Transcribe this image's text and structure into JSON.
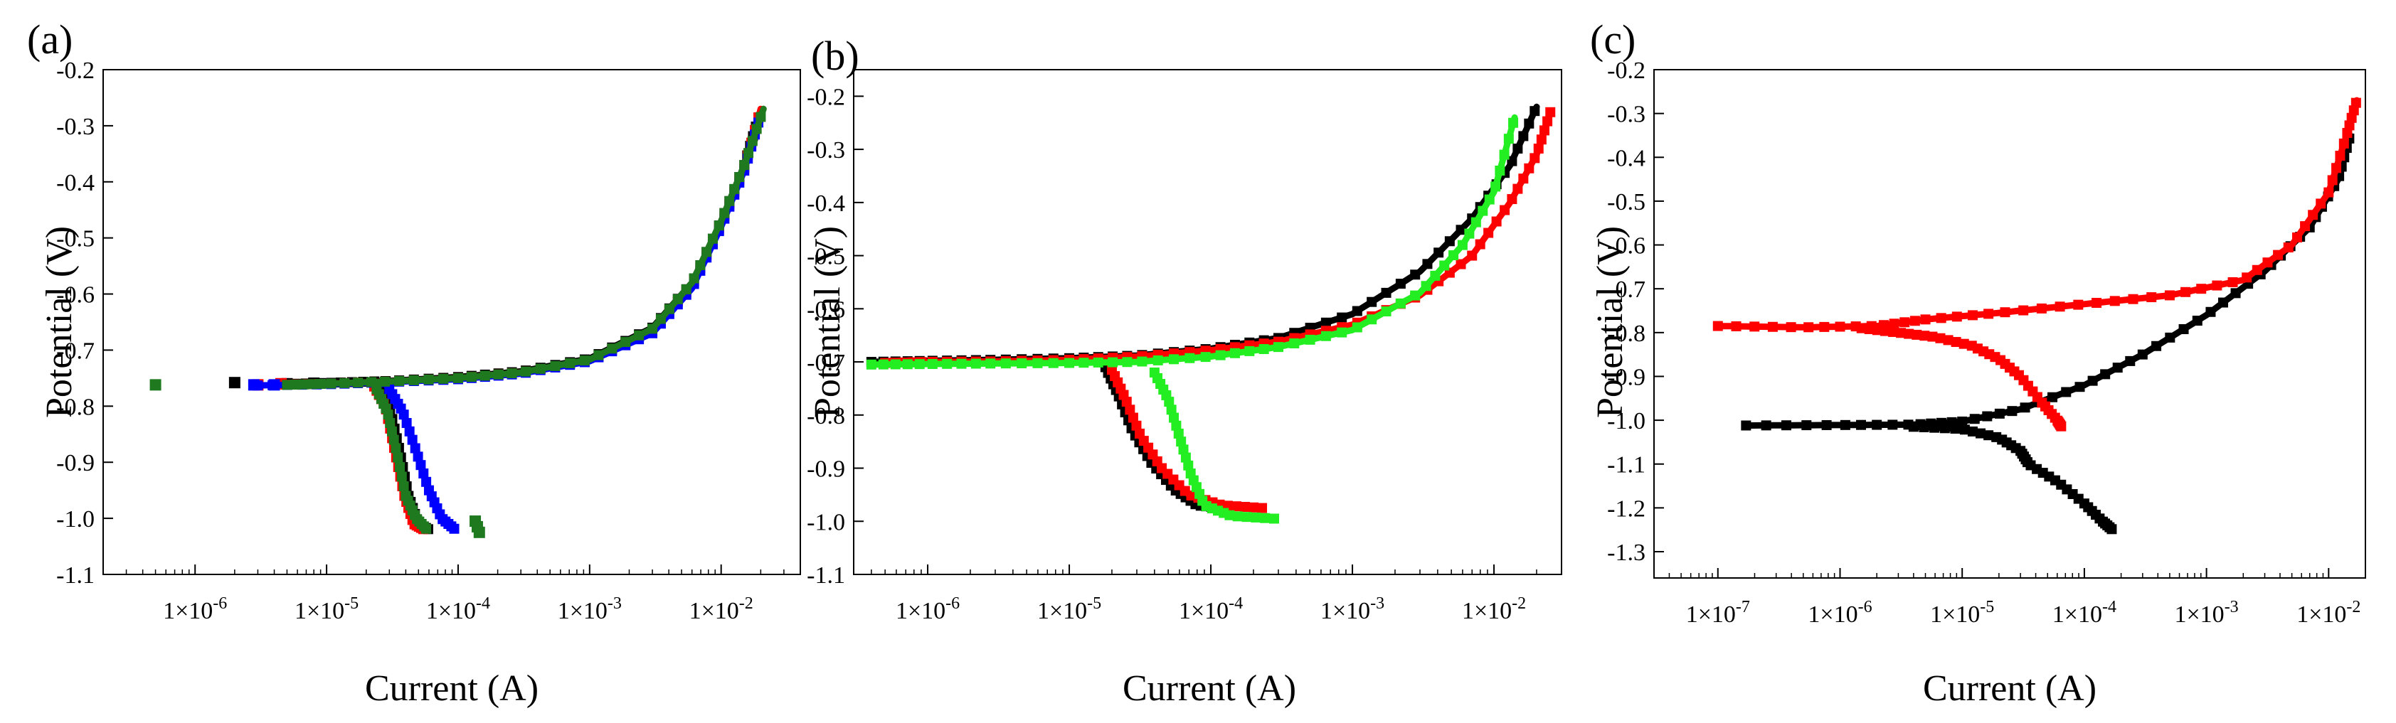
{
  "figure": {
    "description_free": true
  },
  "chart_data": [
    {
      "panel": "(a)",
      "type": "scatter",
      "xscale": "log",
      "xlabel": "Current (A)",
      "ylabel": "Potential (V)",
      "xlim": [
        2e-07,
        0.04
      ],
      "ylim": [
        -1.1,
        -0.2
      ],
      "y_ticks": [
        "-0.2",
        "-0.3",
        "-0.4",
        "-0.5",
        "-0.6",
        "-0.7",
        "-0.8",
        "-0.9",
        "-1.0",
        "-1.1"
      ],
      "x_ticks": [
        "1×10-6",
        "1×10-5",
        "1×10-4",
        "1×10-3",
        "1×10-2"
      ],
      "x_tick_values": [
        1e-06,
        1e-05,
        0.0001,
        0.001,
        0.01
      ],
      "series": [
        {
          "name": "black",
          "color": "#000000",
          "ecorr": -0.76,
          "icorr": 2.5e-05,
          "anodic": [
            [
              6e-06,
              -0.76
            ],
            [
              1.2e-05,
              -0.758
            ],
            [
              3e-05,
              -0.755
            ],
            [
              0.0001,
              -0.748
            ],
            [
              0.0003,
              -0.738
            ],
            [
              0.001,
              -0.715
            ],
            [
              0.003,
              -0.66
            ],
            [
              0.006,
              -0.58
            ],
            [
              0.01,
              -0.47
            ],
            [
              0.015,
              -0.37
            ],
            [
              0.019,
              -0.29
            ]
          ],
          "cathodic": [
            [
              2.5e-05,
              -0.765
            ],
            [
              3e-05,
              -0.8
            ],
            [
              3.6e-05,
              -0.88
            ],
            [
              4.2e-05,
              -0.96
            ],
            [
              5e-05,
              -1.01
            ],
            [
              6e-05,
              -1.02
            ]
          ],
          "outliers": [
            [
              2e-06,
              -0.758
            ],
            [
              5e-06,
              -0.76
            ],
            [
              8e-06,
              -0.759
            ]
          ]
        },
        {
          "name": "red",
          "color": "#ff0000",
          "ecorr": -0.76,
          "icorr": 2.3e-05,
          "anodic": [
            [
              4e-06,
              -0.762
            ],
            [
              1e-05,
              -0.76
            ],
            [
              3e-05,
              -0.756
            ],
            [
              0.0001,
              -0.75
            ],
            [
              0.0003,
              -0.74
            ],
            [
              0.001,
              -0.718
            ],
            [
              0.003,
              -0.665
            ],
            [
              0.006,
              -0.585
            ],
            [
              0.01,
              -0.475
            ],
            [
              0.015,
              -0.375
            ],
            [
              0.02,
              -0.27
            ]
          ],
          "cathodic": [
            [
              2.3e-05,
              -0.765
            ],
            [
              2.8e-05,
              -0.8
            ],
            [
              3.3e-05,
              -0.88
            ],
            [
              3.9e-05,
              -0.96
            ],
            [
              4.6e-05,
              -1.01
            ],
            [
              5.5e-05,
              -1.02
            ]
          ],
          "outliers": [
            [
              3e-06,
              -0.762
            ],
            [
              4.5e-06,
              -0.76
            ]
          ]
        },
        {
          "name": "blue",
          "color": "#0000ff",
          "ecorr": -0.762,
          "icorr": 3e-05,
          "anodic": [
            [
              3e-06,
              -0.763
            ],
            [
              1e-05,
              -0.761
            ],
            [
              3e-05,
              -0.757
            ],
            [
              0.0001,
              -0.752
            ],
            [
              0.0003,
              -0.742
            ],
            [
              0.001,
              -0.72
            ],
            [
              0.003,
              -0.67
            ],
            [
              0.006,
              -0.59
            ],
            [
              0.01,
              -0.48
            ],
            [
              0.015,
              -0.38
            ],
            [
              0.02,
              -0.28
            ]
          ],
          "cathodic": [
            [
              3e-05,
              -0.77
            ],
            [
              3.8e-05,
              -0.81
            ],
            [
              4.8e-05,
              -0.88
            ],
            [
              6e-05,
              -0.95
            ],
            [
              7.5e-05,
              -1.0
            ],
            [
              9.5e-05,
              -1.02
            ]
          ],
          "outliers": [
            [
              2.8e-06,
              -0.762
            ],
            [
              4e-06,
              -0.762
            ]
          ]
        },
        {
          "name": "green",
          "color": "#1f7a1f",
          "ecorr": -0.762,
          "icorr": 2.4e-05,
          "anodic": [
            [
              5e-06,
              -0.762
            ],
            [
              1e-05,
              -0.76
            ],
            [
              3e-05,
              -0.756
            ],
            [
              0.0001,
              -0.75
            ],
            [
              0.0003,
              -0.74
            ],
            [
              0.001,
              -0.717
            ],
            [
              0.003,
              -0.662
            ],
            [
              0.006,
              -0.58
            ],
            [
              0.01,
              -0.47
            ],
            [
              0.015,
              -0.37
            ],
            [
              0.021,
              -0.27
            ]
          ],
          "cathodic": [
            [
              2.4e-05,
              -0.77
            ],
            [
              2.9e-05,
              -0.81
            ],
            [
              3.4e-05,
              -0.88
            ],
            [
              4e-05,
              -0.96
            ],
            [
              4.8e-05,
              -1.0
            ],
            [
              5.8e-05,
              -1.02
            ]
          ],
          "outliers": [
            [
              5e-07,
              -0.762
            ],
            [
              0.000135,
              -1.005
            ],
            [
              0.00014,
              -1.015
            ],
            [
              0.000145,
              -1.025
            ]
          ]
        }
      ]
    },
    {
      "panel": "(b)",
      "type": "scatter",
      "xscale": "log",
      "xlabel": "Current (A)",
      "ylabel": "Potential (V)",
      "xlim": [
        3e-07,
        0.03
      ],
      "ylim": [
        -1.1,
        -0.15
      ],
      "y_ticks": [
        "-0.2",
        "-0.3",
        "-0.4",
        "-0.5",
        "-0.6",
        "-0.7",
        "-0.8",
        "-0.9",
        "-1.0",
        "-1.1"
      ],
      "x_ticks": [
        "1×10-6",
        "1×10-5",
        "1×10-4",
        "1×10-3",
        "1×10-2"
      ],
      "x_tick_values": [
        1e-06,
        1e-05,
        0.0001,
        0.001,
        0.01
      ],
      "series": [
        {
          "name": "black",
          "color": "#000000",
          "ecorr": -0.695,
          "icorr": 1.8e-05,
          "anodic": [
            [
              4e-07,
              -0.7
            ],
            [
              1e-06,
              -0.698
            ],
            [
              3e-06,
              -0.696
            ],
            [
              1e-05,
              -0.693
            ],
            [
              3e-05,
              -0.688
            ],
            [
              0.0001,
              -0.675
            ],
            [
              0.0003,
              -0.655
            ],
            [
              0.001,
              -0.61
            ],
            [
              0.003,
              -0.53
            ],
            [
              0.007,
              -0.43
            ],
            [
              0.013,
              -0.33
            ],
            [
              0.02,
              -0.22
            ]
          ],
          "cathodic": [
            [
              1.8e-05,
              -0.71
            ],
            [
              2.2e-05,
              -0.76
            ],
            [
              2.8e-05,
              -0.83
            ],
            [
              3.8e-05,
              -0.89
            ],
            [
              5.5e-05,
              -0.94
            ],
            [
              8e-05,
              -0.97
            ],
            [
              0.00012,
              -0.975
            ]
          ],
          "outliers": []
        },
        {
          "name": "red",
          "color": "#ff0000",
          "ecorr": -0.7,
          "icorr": 2e-05,
          "anodic": [
            [
              5e-07,
              -0.702
            ],
            [
              1e-06,
              -0.7
            ],
            [
              3e-06,
              -0.699
            ],
            [
              1e-05,
              -0.696
            ],
            [
              3e-05,
              -0.69
            ],
            [
              0.0001,
              -0.678
            ],
            [
              0.0003,
              -0.662
            ],
            [
              0.001,
              -0.63
            ],
            [
              0.003,
              -0.575
            ],
            [
              0.007,
              -0.5
            ],
            [
              0.013,
              -0.4
            ],
            [
              0.02,
              -0.31
            ],
            [
              0.025,
              -0.23
            ]
          ],
          "cathodic": [
            [
              2e-05,
              -0.715
            ],
            [
              2.5e-05,
              -0.77
            ],
            [
              3.2e-05,
              -0.84
            ],
            [
              4.5e-05,
              -0.9
            ],
            [
              7e-05,
              -0.95
            ],
            [
              0.00012,
              -0.97
            ],
            [
              0.00023,
              -0.975
            ]
          ],
          "outliers": []
        },
        {
          "name": "green",
          "color": "#22ee22",
          "ecorr": -0.705,
          "icorr": 4e-05,
          "anodic": [
            [
              4e-07,
              -0.705
            ],
            [
              1e-06,
              -0.704
            ],
            [
              3e-06,
              -0.703
            ],
            [
              1e-05,
              -0.702
            ],
            [
              3e-05,
              -0.7
            ],
            [
              0.0001,
              -0.69
            ],
            [
              0.0003,
              -0.672
            ],
            [
              0.001,
              -0.64
            ],
            [
              0.003,
              -0.57
            ],
            [
              0.006,
              -0.48
            ],
            [
              0.01,
              -0.38
            ],
            [
              0.014,
              -0.24
            ]
          ],
          "cathodic": [
            [
              4e-05,
              -0.72
            ],
            [
              5e-05,
              -0.77
            ],
            [
              6e-05,
              -0.84
            ],
            [
              7.2e-05,
              -0.91
            ],
            [
              9e-05,
              -0.97
            ],
            [
              0.00014,
              -0.99
            ],
            [
              0.00028,
              -0.995
            ]
          ],
          "outliers": []
        }
      ]
    },
    {
      "panel": "(c)",
      "type": "scatter",
      "xscale": "log",
      "xlabel": "Current (A)",
      "ylabel": "Potential (V)",
      "xlim": [
        3e-08,
        0.02
      ],
      "ylim": [
        -1.36,
        -0.2
      ],
      "y_ticks": [
        "-0.2",
        "-0.3",
        "-0.4",
        "-0.5",
        "-0.6",
        "-0.7",
        "-0.8",
        "-0.9",
        "-1.0",
        "-1.1",
        "-1.2",
        "-1.3"
      ],
      "x_ticks": [
        "1×10-7",
        "1×10-6",
        "1×10-5",
        "1×10-4",
        "1×10-3",
        "1×10-2"
      ],
      "x_tick_values": [
        1e-07,
        1e-06,
        1e-05,
        0.0001,
        0.001,
        0.01
      ],
      "series": [
        {
          "name": "black",
          "color": "#000000",
          "ecorr": -1.01,
          "icorr": 4e-06,
          "anodic": [
            [
              1.7e-07,
              -1.012
            ],
            [
              1e-06,
              -1.011
            ],
            [
              4e-06,
              -1.01
            ],
            [
              1e-05,
              -1.003
            ],
            [
              3e-05,
              -0.975
            ],
            [
              0.0001,
              -0.92
            ],
            [
              0.0003,
              -0.85
            ],
            [
              0.001,
              -0.76
            ],
            [
              0.003,
              -0.66
            ],
            [
              0.007,
              -0.56
            ],
            [
              0.012,
              -0.45
            ],
            [
              0.015,
              -0.35
            ]
          ],
          "cathodic": [
            [
              4e-06,
              -1.015
            ],
            [
              1e-05,
              -1.02
            ],
            [
              2e-05,
              -1.04
            ],
            [
              3e-05,
              -1.07
            ],
            [
              3.5e-05,
              -1.1
            ],
            [
              6e-05,
              -1.14
            ],
            [
              0.0001,
              -1.19
            ],
            [
              0.00014,
              -1.23
            ],
            [
              0.00017,
              -1.25
            ]
          ],
          "outliers": []
        },
        {
          "name": "red",
          "color": "#ff0000",
          "ecorr": -0.785,
          "icorr": 1e-06,
          "anodic": [
            [
              1e-07,
              -0.785
            ],
            [
              5e-07,
              -0.788
            ],
            [
              2e-06,
              -0.785
            ],
            [
              5e-06,
              -0.77
            ],
            [
              2e-05,
              -0.755
            ],
            [
              0.0001,
              -0.735
            ],
            [
              0.0005,
              -0.715
            ],
            [
              0.002,
              -0.68
            ],
            [
              0.005,
              -0.6
            ],
            [
              0.01,
              -0.48
            ],
            [
              0.014,
              -0.35
            ],
            [
              0.017,
              -0.27
            ]
          ],
          "cathodic": [
            [
              1.5e-06,
              -0.79
            ],
            [
              3e-06,
              -0.8
            ],
            [
              6e-06,
              -0.81
            ],
            [
              1.2e-05,
              -0.83
            ],
            [
              2e-05,
              -0.86
            ],
            [
              3e-05,
              -0.9
            ],
            [
              4.5e-05,
              -0.96
            ],
            [
              6e-05,
              -1.0
            ],
            [
              6.5e-05,
              -1.015
            ]
          ],
          "outliers": []
        }
      ]
    }
  ]
}
